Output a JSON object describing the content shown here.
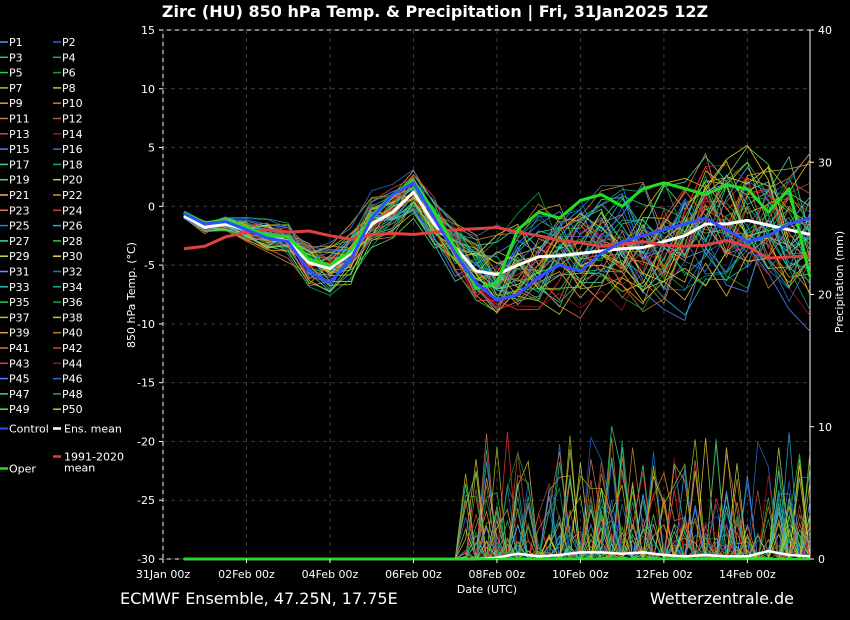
{
  "chart_data": {
    "type": "line",
    "title": "Zirc  (HU)  850 hPa Temp. & Precipitation | Fri, 31Jan2025 12Z",
    "xlabel": "Date (UTC)",
    "ylabel": "850 hPa Temp. (°C)",
    "ylabel_right": "Precipitation (mm)",
    "x_range_days": [
      0,
      15.5
    ],
    "ylim": [
      -30,
      15
    ],
    "ylim_right": [
      0,
      40
    ],
    "y_ticks": [
      15,
      10,
      5,
      0,
      -5,
      -10,
      -15,
      -20,
      -25,
      -30
    ],
    "y_right_ticks": [
      40,
      30,
      20,
      10,
      0
    ],
    "x_ticks": [
      {
        "day": 0,
        "label": "31Jan 00z"
      },
      {
        "day": 2,
        "label": "02Feb 00z"
      },
      {
        "day": 4,
        "label": "04Feb 00z"
      },
      {
        "day": 6,
        "label": "06Feb 00z"
      },
      {
        "day": 8,
        "label": "08Feb 00z"
      },
      {
        "day": 10,
        "label": "10Feb 00z"
      },
      {
        "day": 12,
        "label": "12Feb 00z"
      },
      {
        "day": 14,
        "label": "14Feb 00z"
      }
    ],
    "series": [
      {
        "name": "Ens. mean",
        "color": "#ffffff",
        "kind": "temp",
        "x": [
          0.5,
          1,
          1.5,
          2,
          2.5,
          3,
          3.5,
          4,
          4.5,
          5,
          5.5,
          6,
          6.5,
          7,
          7.5,
          8,
          8.5,
          9,
          9.5,
          10,
          10.5,
          11,
          11.5,
          12,
          12.5,
          13,
          13.5,
          14,
          14.5,
          15,
          15.5
        ],
        "y": [
          -0.8,
          -1.8,
          -1.5,
          -2.0,
          -2.5,
          -3.0,
          -4.8,
          -5.3,
          -4.0,
          -1.5,
          -0.5,
          1.2,
          -1.5,
          -3.5,
          -5.5,
          -5.8,
          -5.0,
          -4.3,
          -4.2,
          -4.0,
          -3.8,
          -3.6,
          -3.5,
          -3.0,
          -2.5,
          -1.5,
          -1.5,
          -1.2,
          -1.6,
          -2.0,
          -2.4
        ]
      },
      {
        "name": "1991-2020 mean",
        "color": "#e04040",
        "kind": "temp",
        "x": [
          0.5,
          1,
          1.5,
          2,
          2.5,
          3,
          3.5,
          4,
          4.5,
          5,
          5.5,
          6,
          6.5,
          7,
          7.5,
          8,
          8.5,
          9,
          9.5,
          10,
          10.5,
          11,
          11.5,
          12,
          12.5,
          13,
          13.5,
          14,
          14.5,
          15,
          15.5
        ],
        "y": [
          -3.6,
          -3.4,
          -2.6,
          -2.2,
          -2.0,
          -2.2,
          -2.1,
          -2.5,
          -2.8,
          -2.4,
          -2.3,
          -2.4,
          -2.2,
          -2.0,
          -1.9,
          -1.8,
          -2.2,
          -2.5,
          -2.9,
          -3.1,
          -3.4,
          -3.2,
          -3.0,
          -3.3,
          -3.4,
          -3.3,
          -2.9,
          -3.4,
          -4.4,
          -4.3,
          -4.2
        ]
      },
      {
        "name": "Oper",
        "color": "#22dd22",
        "kind": "temp",
        "x": [
          0.5,
          1,
          1.5,
          2,
          2.5,
          3,
          3.5,
          4,
          4.5,
          5,
          5.5,
          6,
          6.5,
          7,
          7.5,
          8,
          8.5,
          9,
          9.5,
          10,
          10.5,
          11,
          11.5,
          12,
          12.5,
          13,
          13.5,
          14,
          14.5,
          15,
          15.5
        ],
        "y": [
          -0.5,
          -1.4,
          -1.2,
          -1.8,
          -2.5,
          -2.6,
          -4.5,
          -5.0,
          -3.8,
          -0.8,
          1.0,
          2.2,
          -0.5,
          -3.5,
          -7.0,
          -6.5,
          -2.0,
          -0.5,
          -1.0,
          0.5,
          1.0,
          0.0,
          1.5,
          2.0,
          1.5,
          1.0,
          1.8,
          1.5,
          -0.5,
          1.5,
          -6.0
        ]
      },
      {
        "name": "Control",
        "color": "#3050ff",
        "kind": "temp",
        "x": [
          0.5,
          1,
          1.5,
          2,
          2.5,
          3,
          3.5,
          4,
          4.5,
          5,
          5.5,
          6,
          6.5,
          7,
          7.5,
          8,
          8.5,
          9,
          9.5,
          10,
          10.5,
          11,
          11.5,
          12,
          12.5,
          13,
          13.5,
          14,
          14.5,
          15,
          15.5
        ],
        "y": [
          -0.6,
          -1.5,
          -1.3,
          -2.0,
          -2.7,
          -3.0,
          -5.5,
          -6.5,
          -4.5,
          -1.0,
          1.0,
          2.0,
          -1.0,
          -4.0,
          -6.5,
          -8.0,
          -7.5,
          -6.0,
          -5.0,
          -5.5,
          -4.0,
          -3.0,
          -2.5,
          -2.0,
          -1.5,
          -1.0,
          -2.0,
          -3.0,
          -2.5,
          -1.5,
          -1.0
        ]
      },
      {
        "name": "Ens. mean precip",
        "color": "#ffffff",
        "kind": "precip",
        "x": [
          0.5,
          1,
          2,
          3,
          4,
          5,
          6,
          7,
          7.5,
          8,
          8.5,
          9,
          9.5,
          10,
          10.5,
          11,
          11.5,
          12,
          12.5,
          13,
          13.5,
          14,
          14.5,
          15,
          15.5
        ],
        "y": [
          0,
          0,
          0,
          0,
          0,
          0,
          0,
          0,
          0,
          0.1,
          0.4,
          0.2,
          0.3,
          0.5,
          0.5,
          0.4,
          0.5,
          0.3,
          0.2,
          0.3,
          0.2,
          0.2,
          0.6,
          0.3,
          0.2
        ]
      },
      {
        "name": "Oper precip",
        "color": "#22dd22",
        "kind": "precip",
        "x": [
          0.5,
          1,
          2,
          3,
          4,
          5,
          6,
          7,
          8,
          9,
          10,
          11,
          12,
          13,
          14,
          15,
          15.5
        ],
        "y": [
          0,
          0,
          0,
          0,
          0,
          0,
          0,
          0,
          0,
          0,
          0,
          0,
          0,
          0,
          0,
          0,
          0
        ]
      }
    ],
    "members": {
      "count": 50,
      "temp_envelope_center": [
        -0.8,
        -1.8,
        -1.5,
        -2.0,
        -2.5,
        -3.0,
        -4.8,
        -5.3,
        -4.0,
        -1.5,
        -0.5,
        1.2,
        -1.5,
        -3.5,
        -5.5,
        -5.8,
        -5.0,
        -4.3,
        -4.2,
        -4.0,
        -3.8,
        -3.6,
        -3.5,
        -3.0,
        -2.5,
        -1.5,
        -1.5,
        -1.2,
        -1.6,
        -2.0,
        -2.4
      ],
      "temp_spread": [
        0.3,
        0.5,
        0.6,
        0.8,
        1.0,
        1.3,
        1.6,
        1.8,
        2.0,
        1.8,
        1.5,
        1.4,
        1.8,
        2.2,
        2.6,
        3.0,
        3.2,
        3.4,
        3.5,
        3.6,
        3.8,
        4.0,
        4.2,
        4.4,
        4.5,
        4.6,
        4.7,
        4.8,
        4.9,
        5.0,
        5.0
      ],
      "precip_spike_max": 10.5
    },
    "legend": {
      "rows": [
        [
          "P1",
          "P2"
        ],
        [
          "P3",
          "P4"
        ],
        [
          "P5",
          "P6"
        ],
        [
          "P7",
          "P8"
        ],
        [
          "P9",
          "P10"
        ],
        [
          "P11",
          "P12"
        ],
        [
          "P13",
          "P14"
        ],
        [
          "P15",
          "P16"
        ],
        [
          "P17",
          "P18"
        ],
        [
          "P19",
          "P20"
        ],
        [
          "P21",
          "P22"
        ],
        [
          "P23",
          "P24"
        ],
        [
          "P25",
          "P26"
        ],
        [
          "P27",
          "P28"
        ],
        [
          "P29",
          "P30"
        ],
        [
          "P31",
          "P32"
        ],
        [
          "P33",
          "P34"
        ],
        [
          "P35",
          "P36"
        ],
        [
          "P37",
          "P38"
        ],
        [
          "P39",
          "P40"
        ],
        [
          "P41",
          "P42"
        ],
        [
          "P43",
          "P44"
        ],
        [
          "P45",
          "P46"
        ],
        [
          "P47",
          "P48"
        ],
        [
          "P49",
          "P50"
        ]
      ],
      "control_label": "Control",
      "ens_mean_label": "Ens. mean",
      "clim_label_line1": "1991-2020",
      "clim_label_line2": "mean",
      "oper_label": "Oper",
      "member_colors": [
        "#4aa0ff",
        "#1e6fe0",
        "#22c0c0",
        "#14b080",
        "#20d060",
        "#10a040",
        "#9acd32",
        "#d4c020",
        "#e0a030",
        "#c08020",
        "#e07050",
        "#c05030",
        "#ff3030",
        "#b01020",
        "#5080ff",
        "#3070d0",
        "#40d0a0",
        "#20a070",
        "#60e060",
        "#b0d020",
        "#e8c040",
        "#d09030",
        "#f07060",
        "#d04040",
        "#2080e0",
        "#20b0d0",
        "#30e090",
        "#40c040",
        "#c8e040",
        "#f0d030"
      ]
    },
    "footer_left": "ECMWF Ensemble, 47.25N, 17.75E",
    "footer_right": "Wetterzentrale.de"
  }
}
